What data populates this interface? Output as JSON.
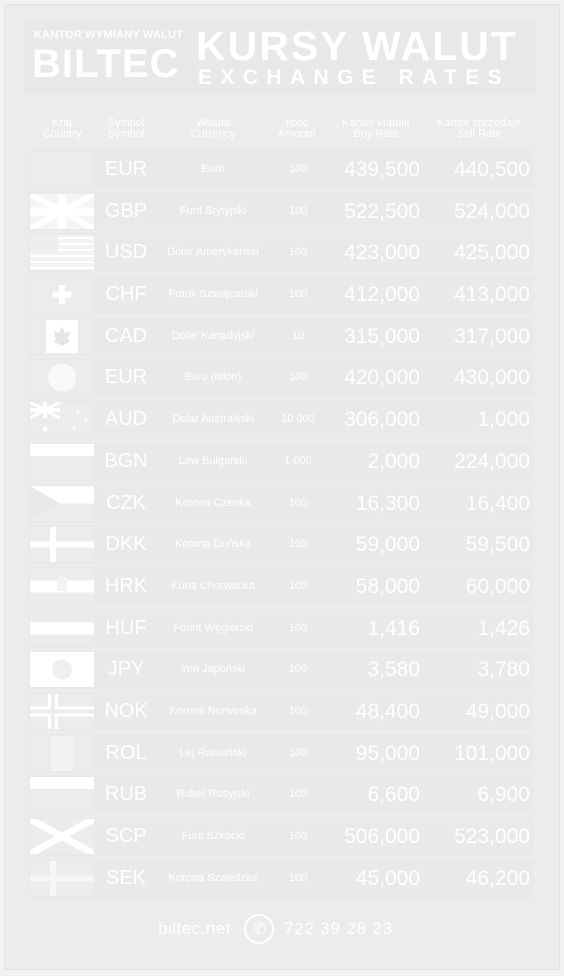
{
  "header": {
    "top_label": "KANTOR WYMIANY WALUT",
    "brand": "BILTEC",
    "title": "KURSY WALUT",
    "subtitle": "EXCHANGE RATES"
  },
  "columns": {
    "country": "Kraj\nCountry",
    "symbol": "Symbol\nSymbol",
    "currency": "Waluta\nCurrency",
    "amount": "Ilość\nAmount",
    "buy": "Kantor kupuje\nBuy Rate",
    "sell": "Kantor sprzedaje\nSell Rate"
  },
  "rows": [
    {
      "flag": "eu-flag-icon",
      "symbol": "EUR",
      "currency": "Euro",
      "amount": "100",
      "buy": "439,500",
      "sell": "440,500"
    },
    {
      "flag": "uk-flag-icon",
      "symbol": "GBP",
      "currency": "Funt Brytyjski",
      "amount": "100",
      "buy": "522,500",
      "sell": "524,000"
    },
    {
      "flag": "us-flag-icon",
      "symbol": "USD",
      "currency": "Dolar Amerykański",
      "amount": "100",
      "buy": "423,000",
      "sell": "425,000"
    },
    {
      "flag": "swiss-flag-icon",
      "symbol": "CHF",
      "currency": "Frank Szwajcarski",
      "amount": "100",
      "buy": "412,000",
      "sell": "413,000"
    },
    {
      "flag": "canada-flag-icon",
      "symbol": "CAD",
      "currency": "Dolar Kanadyjski",
      "amount": "10",
      "buy": "315,000",
      "sell": "317,000"
    },
    {
      "flag": "eu-coin-icon",
      "symbol": "EUR",
      "currency": "Euro (bilon)",
      "amount": "100",
      "buy": "420,000",
      "sell": "430,000"
    },
    {
      "flag": "australia-flag-icon",
      "symbol": "AUD",
      "currency": "Dolar Australijski",
      "amount": "10 000",
      "buy": "306,000",
      "sell": "1,000"
    },
    {
      "flag": "bulgaria-flag-icon",
      "symbol": "BGN",
      "currency": "Lew Bułgarski",
      "amount": "1 000",
      "buy": "2,000",
      "sell": "224,000"
    },
    {
      "flag": "czech-flag-icon",
      "symbol": "CZK",
      "currency": "Korona Czeska",
      "amount": "100",
      "buy": "16,300",
      "sell": "16,400"
    },
    {
      "flag": "denmark-flag-icon",
      "symbol": "DKK",
      "currency": "Korona Duńska",
      "amount": "100",
      "buy": "59,000",
      "sell": "59,500"
    },
    {
      "flag": "croatia-flag-icon",
      "symbol": "HRK",
      "currency": "Kuna Chorwacka",
      "amount": "100",
      "buy": "58,000",
      "sell": "60,000"
    },
    {
      "flag": "hungary-flag-icon",
      "symbol": "HUF",
      "currency": "Forint Węgierski",
      "amount": "100",
      "buy": "1,416",
      "sell": "1,426"
    },
    {
      "flag": "japan-flag-icon",
      "symbol": "JPY",
      "currency": "Yen Japoński",
      "amount": "100",
      "buy": "3,580",
      "sell": "3,780"
    },
    {
      "flag": "norway-flag-icon",
      "symbol": "NOK",
      "currency": "Korona Norweska",
      "amount": "100",
      "buy": "48,400",
      "sell": "49,000"
    },
    {
      "flag": "romania-flag-icon",
      "symbol": "ROL",
      "currency": "Lej Rumuński",
      "amount": "100",
      "buy": "95,000",
      "sell": "101,000"
    },
    {
      "flag": "russia-flag-icon",
      "symbol": "RUB",
      "currency": "Rubel Rosyjski",
      "amount": "100",
      "buy": "6,600",
      "sell": "6,900"
    },
    {
      "flag": "scotland-flag-icon",
      "symbol": "SCP",
      "currency": "Funt Szkocki",
      "amount": "100",
      "buy": "506,000",
      "sell": "523,000"
    },
    {
      "flag": "sweden-flag-icon",
      "symbol": "SEK",
      "currency": "Korona Szwedzka",
      "amount": "100",
      "buy": "45,000",
      "sell": "46,200"
    }
  ],
  "footer": {
    "site": "biltec.net",
    "phone_icon": "phone-icon",
    "phone": "722 39 28 23"
  },
  "colors": {
    "background": "#ececec",
    "text": "#ffffff"
  }
}
